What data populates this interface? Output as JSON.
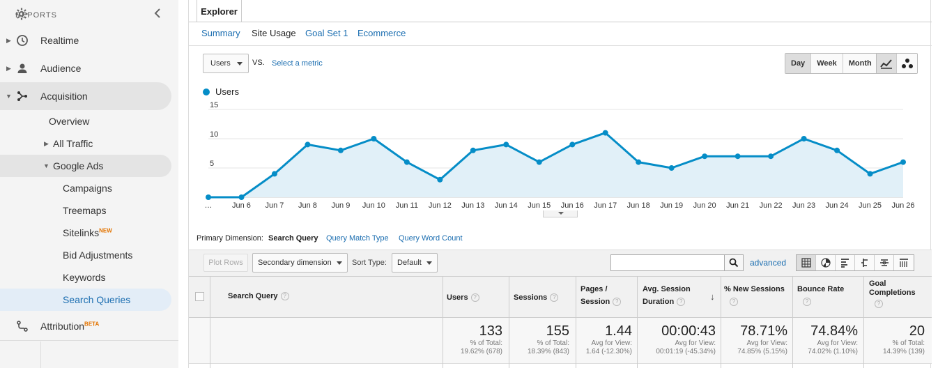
{
  "sidebar": {
    "reports_label": "REPORTS",
    "items": [
      {
        "label": "Realtime"
      },
      {
        "label": "Audience"
      },
      {
        "label": "Acquisition"
      },
      {
        "label": "Overview"
      },
      {
        "label": "All Traffic"
      },
      {
        "label": "Google Ads"
      },
      {
        "label": "Campaigns"
      },
      {
        "label": "Treemaps"
      },
      {
        "label": "Sitelinks",
        "badge": "NEW"
      },
      {
        "label": "Bid Adjustments"
      },
      {
        "label": "Keywords"
      },
      {
        "label": "Search Queries"
      },
      {
        "label": "Attribution",
        "badge": "BETA"
      }
    ]
  },
  "explorer": {
    "tab_label": "Explorer",
    "subtabs": [
      "Summary",
      "Site Usage",
      "Goal Set 1",
      "Ecommerce"
    ],
    "metric": "Users",
    "vs": "VS.",
    "select_metric": "Select a metric",
    "periods": [
      "Day",
      "Week",
      "Month"
    ],
    "active_period": "Day"
  },
  "chart_data": {
    "type": "area",
    "series": [
      {
        "name": "Users",
        "color": "#058dc7",
        "values": [
          0,
          0,
          4,
          9,
          8,
          10,
          6,
          3,
          8,
          9,
          6,
          9,
          11,
          6,
          5,
          7,
          7,
          7,
          10,
          8,
          4,
          6
        ]
      }
    ],
    "x": [
      "…",
      "Jun 6",
      "Jun 7",
      "Jun 8",
      "Jun 9",
      "Jun 10",
      "Jun 11",
      "Jun 12",
      "Jun 13",
      "Jun 14",
      "Jun 15",
      "Jun 16",
      "Jun 17",
      "Jun 18",
      "Jun 19",
      "Jun 20",
      "Jun 21",
      "Jun 22",
      "Jun 23",
      "Jun 24",
      "Jun 25",
      "Jun 26"
    ],
    "y_ticks": [
      "5",
      "10",
      "15"
    ],
    "ylim": [
      0,
      15
    ],
    "grid": true,
    "legend": "top-left"
  },
  "dimension": {
    "label": "Primary Dimension:",
    "options": [
      "Search Query",
      "Query Match Type",
      "Query Word Count"
    ],
    "active": "Search Query"
  },
  "toolbar": {
    "plot_rows": "Plot Rows",
    "secondary_dimension": "Secondary dimension",
    "sort_type_label": "Sort Type:",
    "sort_type_value": "Default",
    "search_value": "",
    "advanced": "advanced"
  },
  "table": {
    "headers": {
      "search_query": "Search Query",
      "users": "Users",
      "sessions": "Sessions",
      "pages_line1": "Pages /",
      "pages_line2": "Session",
      "duration_line1": "Avg. Session",
      "duration_line2": "Duration",
      "new_sessions": "% New Sessions",
      "bounce": "Bounce Rate",
      "goal_line1": "Goal",
      "goal_line2": "Completions"
    },
    "totals": {
      "users": {
        "value": "133",
        "l1": "% of Total:",
        "l2": "19.62% (678)"
      },
      "sessions": {
        "value": "155",
        "l1": "% of Total:",
        "l2": "18.39% (843)"
      },
      "pages": {
        "value": "1.44",
        "l1": "Avg for View:",
        "l2": "1.64 (-12.30%)"
      },
      "duration": {
        "value": "00:00:43",
        "l1": "Avg for View:",
        "l2": "00:01:19 (-45.34%)"
      },
      "new_sessions": {
        "value": "78.71%",
        "l1": "Avg for View:",
        "l2": "74.85% (5.15%)"
      },
      "bounce": {
        "value": "74.84%",
        "l1": "Avg for View:",
        "l2": "74.02% (1.10%)"
      },
      "goal": {
        "value": "20",
        "l1": "% of Total:",
        "l2": "14.39% (139)"
      }
    }
  },
  "colors": {
    "accent": "#058dc7",
    "link": "#1a6db0",
    "badge": "#e37400"
  }
}
